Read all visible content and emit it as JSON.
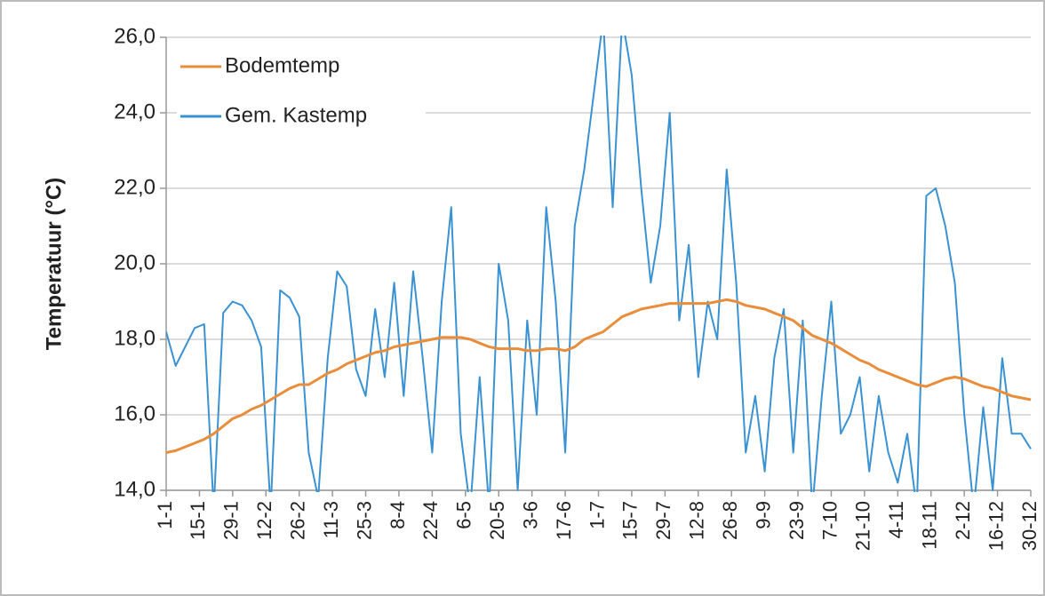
{
  "chart_data": {
    "type": "line",
    "y_label": "Temperatuur  (°C)",
    "x": [
      1,
      5,
      9,
      13,
      17,
      21,
      25,
      29,
      33,
      37,
      41,
      45,
      49,
      53,
      57,
      61,
      65,
      69,
      73,
      77,
      81,
      85,
      89,
      93,
      97,
      101,
      105,
      109,
      113,
      117,
      121,
      125,
      129,
      133,
      137,
      141,
      145,
      149,
      153,
      157,
      161,
      165,
      169,
      173,
      177,
      181,
      185,
      189,
      193,
      197,
      201,
      205,
      209,
      213,
      217,
      221,
      225,
      229,
      233,
      237,
      241,
      245,
      249,
      253,
      257,
      261,
      265,
      269,
      273,
      277,
      281,
      285,
      289,
      293,
      297,
      301,
      305,
      309,
      313,
      317,
      321,
      325,
      329,
      333,
      337,
      341,
      345,
      349,
      353,
      357,
      361,
      365
    ],
    "series": [
      {
        "name": "Bodemtemp",
        "color": "#e98d3a",
        "values": [
          15.0,
          15.05,
          15.15,
          15.25,
          15.35,
          15.5,
          15.7,
          15.9,
          16.0,
          16.15,
          16.25,
          16.4,
          16.55,
          16.7,
          16.8,
          16.8,
          16.95,
          17.1,
          17.2,
          17.35,
          17.45,
          17.55,
          17.65,
          17.7,
          17.8,
          17.85,
          17.9,
          17.95,
          18.0,
          18.05,
          18.05,
          18.05,
          18.0,
          17.9,
          17.8,
          17.75,
          17.75,
          17.75,
          17.7,
          17.7,
          17.75,
          17.75,
          17.7,
          17.8,
          18.0,
          18.1,
          18.2,
          18.4,
          18.6,
          18.7,
          18.8,
          18.85,
          18.9,
          18.95,
          18.95,
          18.95,
          18.95,
          18.95,
          19.0,
          19.05,
          19.0,
          18.9,
          18.85,
          18.8,
          18.7,
          18.6,
          18.5,
          18.3,
          18.1,
          18.0,
          17.9,
          17.75,
          17.6,
          17.45,
          17.35,
          17.2,
          17.1,
          17.0,
          16.9,
          16.8,
          16.75,
          16.85,
          16.95,
          17.0,
          16.95,
          16.85,
          16.75,
          16.7,
          16.6,
          16.5,
          16.45,
          16.4
        ]
      },
      {
        "name": "Gem. Kastemp",
        "color": "#3a92d2",
        "values": [
          18.2,
          17.3,
          17.8,
          18.3,
          18.4,
          13.5,
          18.7,
          19.0,
          18.9,
          18.5,
          17.8,
          13.5,
          19.3,
          19.1,
          18.6,
          15.0,
          13.8,
          17.5,
          19.8,
          19.4,
          17.2,
          16.5,
          18.8,
          17.0,
          19.5,
          16.5,
          19.8,
          17.5,
          15.0,
          19.0,
          21.5,
          15.5,
          13.5,
          17.0,
          13.5,
          20.0,
          18.5,
          14.0,
          18.5,
          16.0,
          21.5,
          19.0,
          15.0,
          21.0,
          22.5,
          24.5,
          26.5,
          21.5,
          26.5,
          25.0,
          22.0,
          19.5,
          21.0,
          24.0,
          18.5,
          20.5,
          17.0,
          19.0,
          18.0,
          22.5,
          19.5,
          15.0,
          16.5,
          14.5,
          17.5,
          18.8,
          15.0,
          18.5,
          13.5,
          16.5,
          19.0,
          15.5,
          16.0,
          17.0,
          14.5,
          16.5,
          15.0,
          14.2,
          15.5,
          13.5,
          21.8,
          22.0,
          21.0,
          19.5,
          16.0,
          13.5,
          16.2,
          14.0,
          17.5,
          15.5,
          15.5,
          15.1
        ]
      }
    ],
    "xlim": [
      1,
      365
    ],
    "xticks": [
      {
        "value": 1,
        "label": "1-1"
      },
      {
        "value": 15,
        "label": "15-1"
      },
      {
        "value": 29,
        "label": "29-1"
      },
      {
        "value": 43,
        "label": "12-2"
      },
      {
        "value": 57,
        "label": "26-2"
      },
      {
        "value": 71,
        "label": "11-3"
      },
      {
        "value": 85,
        "label": "25-3"
      },
      {
        "value": 99,
        "label": "8-4"
      },
      {
        "value": 113,
        "label": "22-4"
      },
      {
        "value": 127,
        "label": "6-5"
      },
      {
        "value": 141,
        "label": "20-5"
      },
      {
        "value": 155,
        "label": "3-6"
      },
      {
        "value": 169,
        "label": "17-6"
      },
      {
        "value": 183,
        "label": "1-7"
      },
      {
        "value": 197,
        "label": "15-7"
      },
      {
        "value": 211,
        "label": "29-7"
      },
      {
        "value": 225,
        "label": "12-8"
      },
      {
        "value": 239,
        "label": "26-8"
      },
      {
        "value": 253,
        "label": "9-9"
      },
      {
        "value": 267,
        "label": "23-9"
      },
      {
        "value": 281,
        "label": "7-10"
      },
      {
        "value": 295,
        "label": "21-10"
      },
      {
        "value": 309,
        "label": "4-11"
      },
      {
        "value": 323,
        "label": "18-11"
      },
      {
        "value": 337,
        "label": "2-12"
      },
      {
        "value": 351,
        "label": "16-12"
      },
      {
        "value": 365,
        "label": "30-12"
      }
    ],
    "ylim": [
      14,
      26
    ],
    "yticks": [
      {
        "value": 14,
        "label": "14,0"
      },
      {
        "value": 16,
        "label": "16,0"
      },
      {
        "value": 18,
        "label": "18,0"
      },
      {
        "value": 20,
        "label": "20,0"
      },
      {
        "value": 22,
        "label": "22,0"
      },
      {
        "value": 24,
        "label": "24,0"
      },
      {
        "value": 26,
        "label": "26,0"
      }
    ],
    "grid": true,
    "legend": "top-left"
  }
}
